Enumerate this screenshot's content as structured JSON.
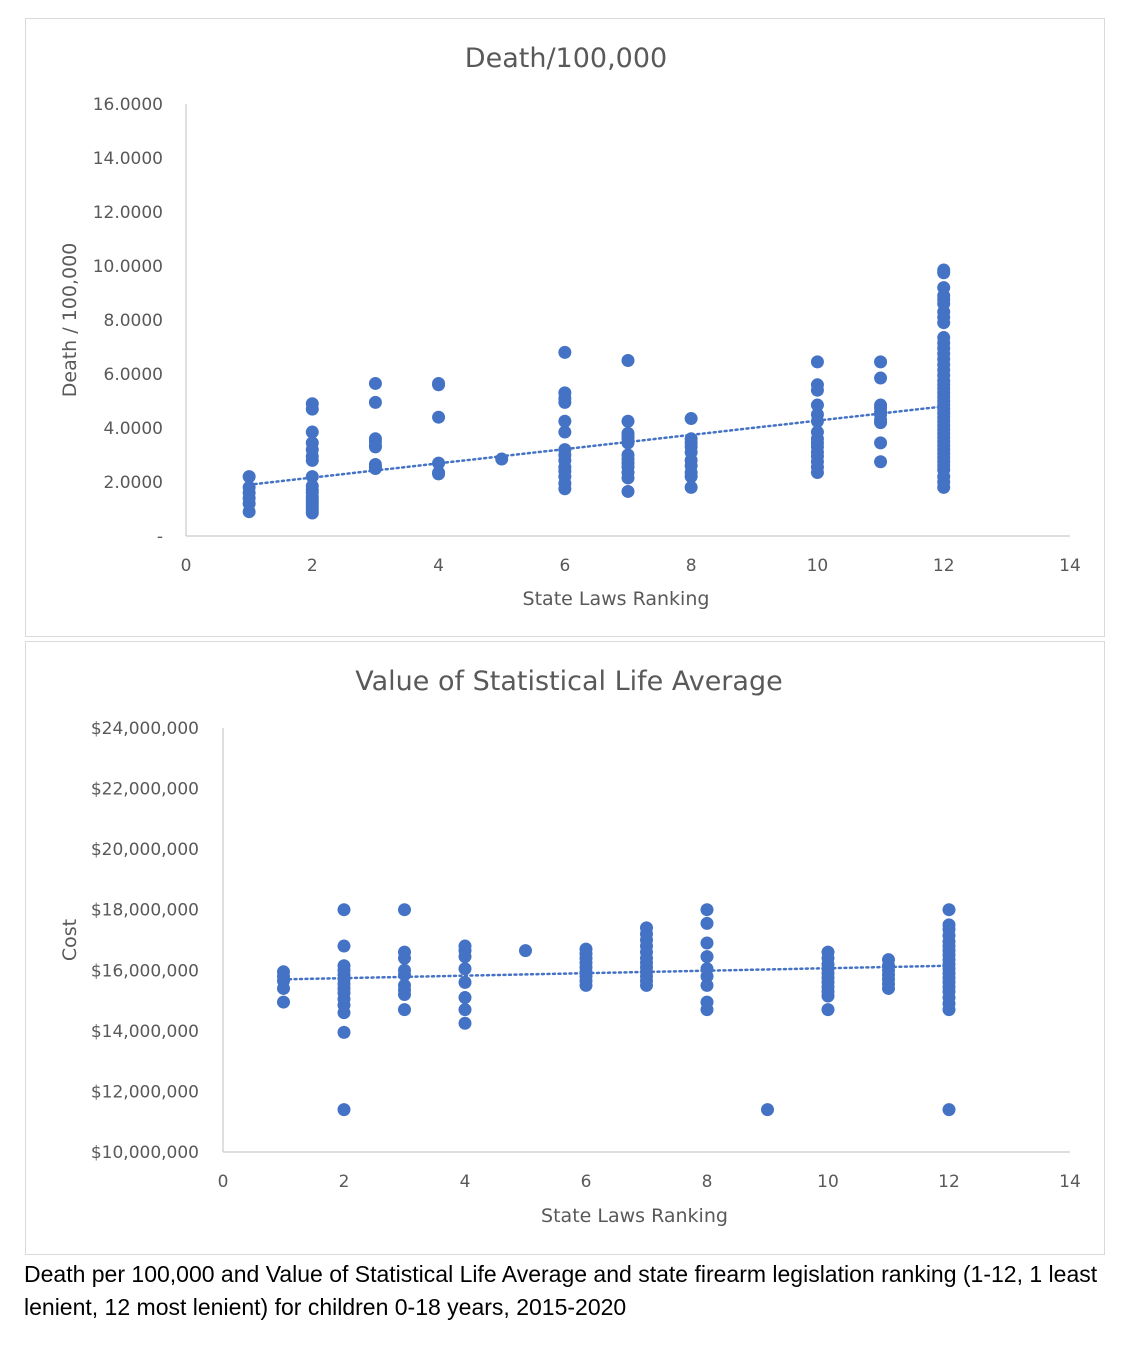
{
  "caption": "Death per 100,000 and Value of Statistical Life Average and state firearm legislation ranking (1-12, 1 least lenient, 12 most lenient) for children 0-18 years, 2015-2020",
  "colors": {
    "marker": "#4472C4",
    "axis": "#bfbfbf",
    "text": "#595959",
    "title": "#595959"
  },
  "chart_data": [
    {
      "type": "scatter",
      "title": "Death/100,000",
      "xlabel": "State Laws Ranking",
      "ylabel": "Death / 100,000",
      "xlim": [
        0,
        14
      ],
      "ylim": [
        0,
        16
      ],
      "x_ticks": [
        0,
        2,
        4,
        6,
        8,
        10,
        12,
        14
      ],
      "x_tick_labels": [
        "0",
        "2",
        "4",
        "6",
        "8",
        "10",
        "12",
        "14"
      ],
      "y_ticks": [
        0,
        2,
        4,
        6,
        8,
        10,
        12,
        14,
        16
      ],
      "y_tick_labels": [
        "-",
        "2.0000",
        "4.0000",
        "6.0000",
        "8.0000",
        "10.0000",
        "12.0000",
        "14.0000",
        "16.0000"
      ],
      "grid": false,
      "legend": "none",
      "trendline": {
        "type": "linear",
        "style": "dotted",
        "x": [
          1,
          12
        ],
        "y": [
          1.9,
          4.8
        ]
      },
      "points": [
        [
          1,
          2.2
        ],
        [
          1,
          1.8
        ],
        [
          1,
          1.6
        ],
        [
          1,
          1.4
        ],
        [
          1,
          1.2
        ],
        [
          1,
          0.9
        ],
        [
          2,
          4.9
        ],
        [
          2,
          4.7
        ],
        [
          2,
          3.85
        ],
        [
          2,
          3.45
        ],
        [
          2,
          3.2
        ],
        [
          2,
          2.95
        ],
        [
          2,
          2.8
        ],
        [
          2,
          2.2
        ],
        [
          2,
          1.85
        ],
        [
          2,
          1.7
        ],
        [
          2,
          1.6
        ],
        [
          2,
          1.45
        ],
        [
          2,
          1.35
        ],
        [
          2,
          1.25
        ],
        [
          2,
          1.15
        ],
        [
          2,
          1.05
        ],
        [
          2,
          0.95
        ],
        [
          2,
          0.85
        ],
        [
          3,
          5.65
        ],
        [
          3,
          4.95
        ],
        [
          3,
          3.6
        ],
        [
          3,
          3.5
        ],
        [
          3,
          3.35
        ],
        [
          3,
          3.3
        ],
        [
          3,
          2.65
        ],
        [
          3,
          2.55
        ],
        [
          3,
          2.5
        ],
        [
          4,
          5.65
        ],
        [
          4,
          5.6
        ],
        [
          4,
          4.4
        ],
        [
          4,
          2.7
        ],
        [
          4,
          2.35
        ],
        [
          4,
          2.3
        ],
        [
          5,
          2.85
        ],
        [
          6,
          6.8
        ],
        [
          6,
          5.3
        ],
        [
          6,
          5.1
        ],
        [
          6,
          4.95
        ],
        [
          6,
          4.25
        ],
        [
          6,
          3.85
        ],
        [
          6,
          3.2
        ],
        [
          6,
          3.0
        ],
        [
          6,
          2.8
        ],
        [
          6,
          2.55
        ],
        [
          6,
          2.4
        ],
        [
          6,
          2.2
        ],
        [
          6,
          1.95
        ],
        [
          6,
          1.75
        ],
        [
          7,
          6.5
        ],
        [
          7,
          4.25
        ],
        [
          7,
          3.8
        ],
        [
          7,
          3.7
        ],
        [
          7,
          3.6
        ],
        [
          7,
          3.45
        ],
        [
          7,
          3.0
        ],
        [
          7,
          2.85
        ],
        [
          7,
          2.7
        ],
        [
          7,
          2.55
        ],
        [
          7,
          2.35
        ],
        [
          7,
          2.15
        ],
        [
          7,
          1.65
        ],
        [
          8,
          4.35
        ],
        [
          8,
          3.6
        ],
        [
          8,
          3.45
        ],
        [
          8,
          3.3
        ],
        [
          8,
          3.1
        ],
        [
          8,
          2.8
        ],
        [
          8,
          2.6
        ],
        [
          8,
          2.35
        ],
        [
          8,
          2.2
        ],
        [
          8,
          1.8
        ],
        [
          10,
          6.45
        ],
        [
          10,
          5.6
        ],
        [
          10,
          5.4
        ],
        [
          10,
          4.85
        ],
        [
          10,
          4.5
        ],
        [
          10,
          4.25
        ],
        [
          10,
          3.85
        ],
        [
          10,
          3.6
        ],
        [
          10,
          3.45
        ],
        [
          10,
          3.3
        ],
        [
          10,
          3.1
        ],
        [
          10,
          2.95
        ],
        [
          10,
          2.75
        ],
        [
          10,
          2.55
        ],
        [
          10,
          2.35
        ],
        [
          11,
          6.45
        ],
        [
          11,
          5.85
        ],
        [
          11,
          4.85
        ],
        [
          11,
          4.75
        ],
        [
          11,
          4.6
        ],
        [
          11,
          4.5
        ],
        [
          11,
          4.3
        ],
        [
          11,
          4.2
        ],
        [
          11,
          3.45
        ],
        [
          11,
          2.75
        ],
        [
          12,
          9.85
        ],
        [
          12,
          9.75
        ],
        [
          12,
          9.2
        ],
        [
          12,
          8.9
        ],
        [
          12,
          8.75
        ],
        [
          12,
          8.6
        ],
        [
          12,
          8.3
        ],
        [
          12,
          8.1
        ],
        [
          12,
          7.9
        ],
        [
          12,
          7.35
        ],
        [
          12,
          7.15
        ],
        [
          12,
          6.95
        ],
        [
          12,
          6.75
        ],
        [
          12,
          6.55
        ],
        [
          12,
          6.35
        ],
        [
          12,
          6.15
        ],
        [
          12,
          5.95
        ],
        [
          12,
          5.75
        ],
        [
          12,
          5.6
        ],
        [
          12,
          5.45
        ],
        [
          12,
          5.3
        ],
        [
          12,
          5.15
        ],
        [
          12,
          5.0
        ],
        [
          12,
          4.85
        ],
        [
          12,
          4.7
        ],
        [
          12,
          4.55
        ],
        [
          12,
          4.4
        ],
        [
          12,
          4.25
        ],
        [
          12,
          4.1
        ],
        [
          12,
          3.95
        ],
        [
          12,
          3.8
        ],
        [
          12,
          3.65
        ],
        [
          12,
          3.5
        ],
        [
          12,
          3.35
        ],
        [
          12,
          3.2
        ],
        [
          12,
          3.05
        ],
        [
          12,
          2.9
        ],
        [
          12,
          2.75
        ],
        [
          12,
          2.6
        ],
        [
          12,
          2.45
        ],
        [
          12,
          2.2
        ],
        [
          12,
          2.0
        ],
        [
          12,
          1.8
        ]
      ]
    },
    {
      "type": "scatter",
      "title": "Value of Statistical Life Average",
      "xlabel": "State Laws Ranking",
      "ylabel": "Cost",
      "xlim": [
        0,
        14
      ],
      "ylim": [
        10000000,
        24000000
      ],
      "x_ticks": [
        0,
        2,
        4,
        6,
        8,
        10,
        12,
        14
      ],
      "x_tick_labels": [
        "0",
        "2",
        "4",
        "6",
        "8",
        "10",
        "12",
        "14"
      ],
      "y_ticks": [
        10000000,
        12000000,
        14000000,
        16000000,
        18000000,
        20000000,
        22000000,
        24000000
      ],
      "y_tick_labels": [
        "$10,000,000",
        "$12,000,000",
        "$14,000,000",
        "$16,000,000",
        "$18,000,000",
        "$20,000,000",
        "$22,000,000",
        "$24,000,000"
      ],
      "grid": false,
      "legend": "none",
      "trendline": {
        "type": "linear",
        "style": "dotted",
        "x": [
          1,
          12
        ],
        "y": [
          15700000,
          16150000
        ]
      },
      "points": [
        [
          1,
          15950000
        ],
        [
          1,
          15800000
        ],
        [
          1,
          15650000
        ],
        [
          1,
          15400000
        ],
        [
          1,
          14950000
        ],
        [
          2,
          18000000
        ],
        [
          2,
          16800000
        ],
        [
          2,
          16150000
        ],
        [
          2,
          16000000
        ],
        [
          2,
          15850000
        ],
        [
          2,
          15700000
        ],
        [
          2,
          15550000
        ],
        [
          2,
          15400000
        ],
        [
          2,
          15250000
        ],
        [
          2,
          15050000
        ],
        [
          2,
          14850000
        ],
        [
          2,
          14600000
        ],
        [
          2,
          13950000
        ],
        [
          2,
          11400000
        ],
        [
          3,
          18000000
        ],
        [
          3,
          16600000
        ],
        [
          3,
          16400000
        ],
        [
          3,
          16000000
        ],
        [
          3,
          15850000
        ],
        [
          3,
          15500000
        ],
        [
          3,
          15350000
        ],
        [
          3,
          15200000
        ],
        [
          3,
          14700000
        ],
        [
          4,
          16800000
        ],
        [
          4,
          16650000
        ],
        [
          4,
          16450000
        ],
        [
          4,
          16050000
        ],
        [
          4,
          15600000
        ],
        [
          4,
          15100000
        ],
        [
          4,
          14700000
        ],
        [
          4,
          14250000
        ],
        [
          5,
          16650000
        ],
        [
          6,
          16700000
        ],
        [
          6,
          16550000
        ],
        [
          6,
          16400000
        ],
        [
          6,
          16250000
        ],
        [
          6,
          16100000
        ],
        [
          6,
          15950000
        ],
        [
          6,
          15800000
        ],
        [
          6,
          15650000
        ],
        [
          6,
          15500000
        ],
        [
          7,
          17400000
        ],
        [
          7,
          17200000
        ],
        [
          7,
          17000000
        ],
        [
          7,
          16800000
        ],
        [
          7,
          16600000
        ],
        [
          7,
          16400000
        ],
        [
          7,
          16250000
        ],
        [
          7,
          16100000
        ],
        [
          7,
          15950000
        ],
        [
          7,
          15800000
        ],
        [
          7,
          15650000
        ],
        [
          7,
          15500000
        ],
        [
          8,
          18000000
        ],
        [
          8,
          17550000
        ],
        [
          8,
          16900000
        ],
        [
          8,
          16450000
        ],
        [
          8,
          16050000
        ],
        [
          8,
          15800000
        ],
        [
          8,
          15500000
        ],
        [
          8,
          14950000
        ],
        [
          8,
          14700000
        ],
        [
          9,
          11400000
        ],
        [
          10,
          16600000
        ],
        [
          10,
          16400000
        ],
        [
          10,
          16200000
        ],
        [
          10,
          16050000
        ],
        [
          10,
          15900000
        ],
        [
          10,
          15750000
        ],
        [
          10,
          15600000
        ],
        [
          10,
          15450000
        ],
        [
          10,
          15300000
        ],
        [
          10,
          15150000
        ],
        [
          10,
          14700000
        ],
        [
          11,
          16350000
        ],
        [
          11,
          16150000
        ],
        [
          11,
          16000000
        ],
        [
          11,
          15850000
        ],
        [
          11,
          15700000
        ],
        [
          11,
          15550000
        ],
        [
          11,
          15400000
        ],
        [
          12,
          18000000
        ],
        [
          12,
          17500000
        ],
        [
          12,
          17350000
        ],
        [
          12,
          17150000
        ],
        [
          12,
          16950000
        ],
        [
          12,
          16800000
        ],
        [
          12,
          16650000
        ],
        [
          12,
          16500000
        ],
        [
          12,
          16350000
        ],
        [
          12,
          16200000
        ],
        [
          12,
          16050000
        ],
        [
          12,
          15900000
        ],
        [
          12,
          15750000
        ],
        [
          12,
          15600000
        ],
        [
          12,
          15450000
        ],
        [
          12,
          15300000
        ],
        [
          12,
          15100000
        ],
        [
          12,
          14900000
        ],
        [
          12,
          14700000
        ],
        [
          12,
          11400000
        ]
      ]
    }
  ]
}
